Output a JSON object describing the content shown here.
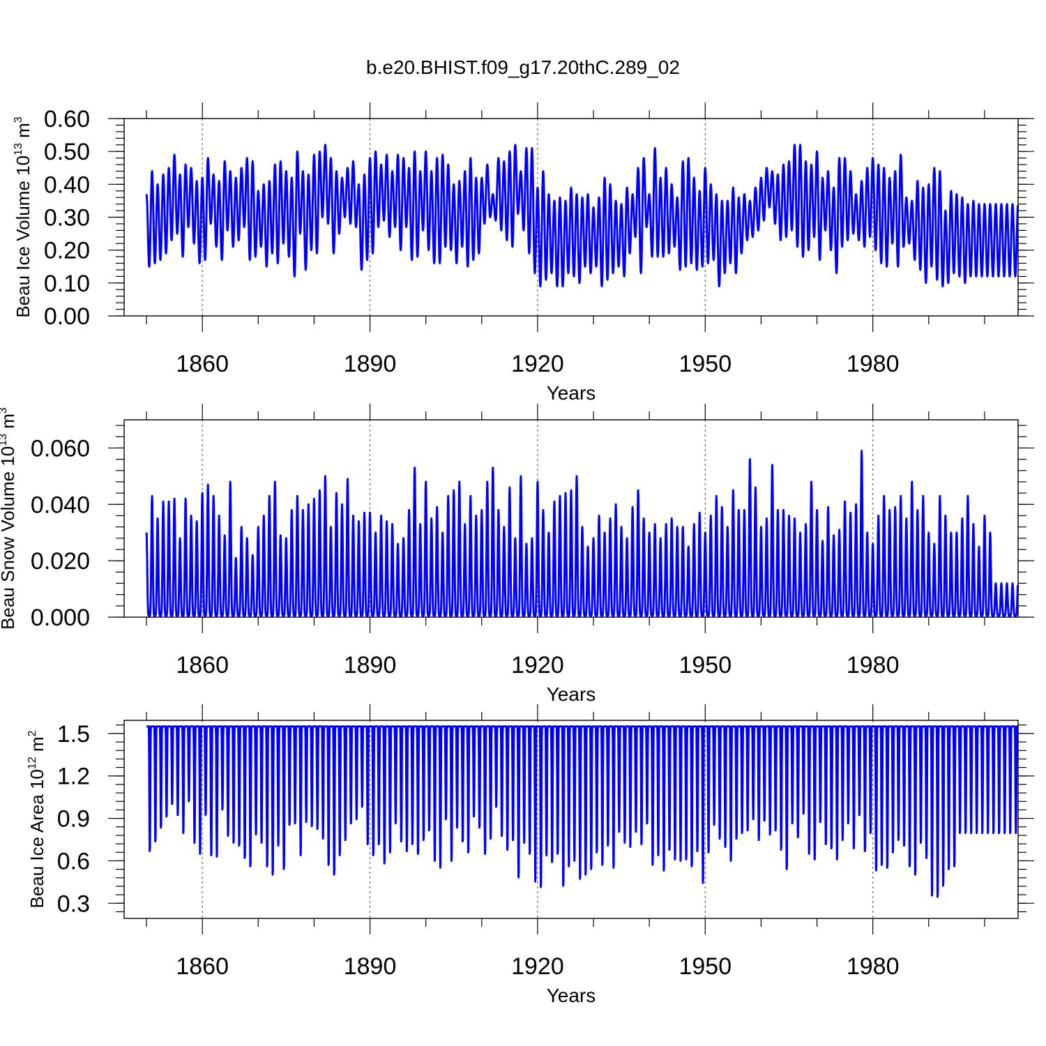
{
  "figure_title": "b.e20.BHIST.f09_g17.20thC.289_02",
  "colors": {
    "series": "#0000ff",
    "frame": "#000000",
    "grid": "#666666"
  },
  "chart_data": [
    {
      "type": "line",
      "title": "b.e20.BHIST.f09_g17.20thC.289_02",
      "xlabel": "Years",
      "ylabel": {
        "base": "Beau Ice Volume 10",
        "exp": "13",
        "unit": " m",
        "unit_exp": "3"
      },
      "xlim": [
        1846,
        2006
      ],
      "ylim": [
        0.0,
        0.6
      ],
      "x_ticks": [
        1860,
        1890,
        1920,
        1950,
        1980
      ],
      "x_tick_labels": [
        "1860",
        "1890",
        "1920",
        "1950",
        "1980"
      ],
      "y_ticks": [
        0.0,
        0.1,
        0.2,
        0.3,
        0.4,
        0.5,
        0.6
      ],
      "y_tick_labels": [
        "0.00",
        "0.10",
        "0.20",
        "0.30",
        "0.40",
        "0.50",
        "0.60"
      ],
      "grid_x": [
        1860,
        1890,
        1920,
        1950,
        1980
      ],
      "series": [
        {
          "name": "Beau Ice Volume",
          "x_start": 1850,
          "x_end": 2006,
          "annual_max": [
            0.37,
            0.44,
            0.4,
            0.43,
            0.45,
            0.49,
            0.43,
            0.46,
            0.45,
            0.41,
            0.42,
            0.48,
            0.43,
            0.41,
            0.47,
            0.44,
            0.42,
            0.45,
            0.48,
            0.47,
            0.38,
            0.4,
            0.41,
            0.46,
            0.47,
            0.44,
            0.42,
            0.5,
            0.44,
            0.43,
            0.49,
            0.5,
            0.52,
            0.48,
            0.44,
            0.42,
            0.45,
            0.47,
            0.4,
            0.43,
            0.48,
            0.5,
            0.46,
            0.49,
            0.44,
            0.49,
            0.48,
            0.45,
            0.5,
            0.44,
            0.5,
            0.44,
            0.48,
            0.49,
            0.46,
            0.4,
            0.41,
            0.44,
            0.48,
            0.42,
            0.42,
            0.46,
            0.37,
            0.48,
            0.47,
            0.5,
            0.52,
            0.44,
            0.51,
            0.51,
            0.39,
            0.44,
            0.37,
            0.35,
            0.36,
            0.35,
            0.39,
            0.37,
            0.36,
            0.37,
            0.33,
            0.36,
            0.42,
            0.4,
            0.35,
            0.34,
            0.39,
            0.37,
            0.45,
            0.48,
            0.37,
            0.51,
            0.42,
            0.45,
            0.4,
            0.36,
            0.47,
            0.48,
            0.42,
            0.38,
            0.45,
            0.4,
            0.37,
            0.35,
            0.35,
            0.39,
            0.36,
            0.37,
            0.35,
            0.39,
            0.42,
            0.45,
            0.44,
            0.43,
            0.46,
            0.47,
            0.52,
            0.52,
            0.47,
            0.46,
            0.5,
            0.42,
            0.44,
            0.39,
            0.48,
            0.48,
            0.44,
            0.37,
            0.41,
            0.45,
            0.48,
            0.46,
            0.45,
            0.42,
            0.44,
            0.49,
            0.36,
            0.35,
            0.41,
            0.39,
            0.4,
            0.45,
            0.44,
            0.32,
            0.38,
            0.37,
            0.36,
            0.34,
            0.35,
            0.34
          ],
          "annual_min": [
            0.15,
            0.16,
            0.17,
            0.19,
            0.23,
            0.25,
            0.18,
            0.27,
            0.22,
            0.16,
            0.17,
            0.28,
            0.21,
            0.17,
            0.26,
            0.21,
            0.23,
            0.27,
            0.17,
            0.18,
            0.21,
            0.15,
            0.19,
            0.16,
            0.22,
            0.18,
            0.12,
            0.25,
            0.14,
            0.2,
            0.19,
            0.3,
            0.28,
            0.19,
            0.25,
            0.3,
            0.28,
            0.27,
            0.14,
            0.17,
            0.19,
            0.27,
            0.29,
            0.24,
            0.27,
            0.2,
            0.27,
            0.17,
            0.18,
            0.26,
            0.2,
            0.16,
            0.16,
            0.21,
            0.2,
            0.16,
            0.21,
            0.15,
            0.17,
            0.19,
            0.28,
            0.3,
            0.29,
            0.26,
            0.23,
            0.21,
            0.31,
            0.26,
            0.19,
            0.13,
            0.09,
            0.11,
            0.13,
            0.09,
            0.09,
            0.13,
            0.12,
            0.1,
            0.15,
            0.13,
            0.15,
            0.09,
            0.11,
            0.13,
            0.15,
            0.12,
            0.19,
            0.24,
            0.13,
            0.27,
            0.18,
            0.18,
            0.18,
            0.19,
            0.21,
            0.14,
            0.15,
            0.16,
            0.14,
            0.15,
            0.16,
            0.17,
            0.09,
            0.13,
            0.16,
            0.13,
            0.19,
            0.23,
            0.24,
            0.26,
            0.29,
            0.33,
            0.28,
            0.23,
            0.24,
            0.26,
            0.21,
            0.18,
            0.2,
            0.24,
            0.17,
            0.26,
            0.2,
            0.13,
            0.21,
            0.23,
            0.25,
            0.23,
            0.21,
            0.24,
            0.2,
            0.16,
            0.15,
            0.22,
            0.15,
            0.21,
            0.22,
            0.17,
            0.14,
            0.1,
            0.15,
            0.11,
            0.09,
            0.1,
            0.13,
            0.12,
            0.1,
            0.12
          ]
        }
      ]
    },
    {
      "type": "line",
      "xlabel": "Years",
      "ylabel": {
        "base": "Beau Snow Volume 10",
        "exp": "13",
        "unit": " m",
        "unit_exp": "3"
      },
      "xlim": [
        1846,
        2006
      ],
      "ylim": [
        0.0,
        0.07
      ],
      "x_ticks": [
        1860,
        1890,
        1920,
        1950,
        1980
      ],
      "x_tick_labels": [
        "1860",
        "1890",
        "1920",
        "1950",
        "1980"
      ],
      "y_ticks": [
        0.0,
        0.02,
        0.04,
        0.06
      ],
      "y_tick_labels": [
        "0.000",
        "0.020",
        "0.040",
        "0.060"
      ],
      "grid_x": [
        1860,
        1890,
        1920,
        1950,
        1980
      ],
      "series": [
        {
          "name": "Beau Snow Volume",
          "x_start": 1850,
          "x_end": 2006,
          "annual_max": [
            0.03,
            0.043,
            0.035,
            0.041,
            0.041,
            0.042,
            0.028,
            0.042,
            0.036,
            0.034,
            0.044,
            0.047,
            0.043,
            0.036,
            0.029,
            0.048,
            0.021,
            0.032,
            0.028,
            0.022,
            0.032,
            0.036,
            0.043,
            0.048,
            0.029,
            0.028,
            0.038,
            0.043,
            0.038,
            0.04,
            0.042,
            0.045,
            0.05,
            0.032,
            0.044,
            0.04,
            0.049,
            0.036,
            0.034,
            0.037,
            0.037,
            0.03,
            0.036,
            0.034,
            0.033,
            0.026,
            0.028,
            0.038,
            0.053,
            0.033,
            0.048,
            0.035,
            0.039,
            0.03,
            0.043,
            0.045,
            0.048,
            0.033,
            0.043,
            0.036,
            0.038,
            0.048,
            0.053,
            0.038,
            0.032,
            0.046,
            0.028,
            0.05,
            0.026,
            0.028,
            0.048,
            0.038,
            0.03,
            0.041,
            0.043,
            0.044,
            0.045,
            0.05,
            0.032,
            0.025,
            0.028,
            0.036,
            0.03,
            0.035,
            0.04,
            0.032,
            0.028,
            0.039,
            0.045,
            0.035,
            0.03,
            0.033,
            0.028,
            0.033,
            0.035,
            0.032,
            0.032,
            0.025,
            0.033,
            0.037,
            0.03,
            0.036,
            0.043,
            0.039,
            0.032,
            0.045,
            0.038,
            0.038,
            0.056,
            0.046,
            0.032,
            0.035,
            0.054,
            0.038,
            0.038,
            0.036,
            0.035,
            0.03,
            0.033,
            0.048,
            0.038,
            0.027,
            0.039,
            0.029,
            0.031,
            0.041,
            0.037,
            0.04,
            0.059,
            0.03,
            0.026,
            0.036,
            0.043,
            0.038,
            0.039,
            0.043,
            0.035,
            0.048,
            0.038,
            0.043,
            0.03,
            0.026,
            0.043,
            0.036,
            0.03,
            0.03,
            0.035,
            0.043,
            0.033,
            0.025,
            0.036,
            0.03,
            0.012
          ],
          "annual_min": [
            0.0005
          ]
        }
      ]
    },
    {
      "type": "line",
      "xlabel": "Years",
      "ylabel": {
        "base": "Beau Ice Area 10",
        "exp": "12",
        "unit": " m",
        "unit_exp": "2"
      },
      "xlim": [
        1846,
        2006
      ],
      "ylim": [
        0.193,
        1.593
      ],
      "x_ticks": [
        1860,
        1890,
        1920,
        1950,
        1980
      ],
      "x_tick_labels": [
        "1860",
        "1890",
        "1920",
        "1950",
        "1980"
      ],
      "y_ticks": [
        0.3,
        0.6,
        0.9,
        1.2,
        1.5
      ],
      "y_tick_labels": [
        "0.3",
        "0.6",
        "0.9",
        "1.2",
        "1.5"
      ],
      "grid_x": [
        1860,
        1890,
        1920,
        1950,
        1980
      ],
      "series": [
        {
          "name": "Beau Ice Area",
          "x_start": 1850,
          "x_end": 2006,
          "annual_max": [
            1.55
          ],
          "annual_min": [
            0.65,
            0.72,
            0.82,
            0.9,
            0.99,
            0.91,
            0.78,
            1.01,
            0.71,
            0.63,
            0.91,
            0.62,
            0.61,
            0.95,
            0.76,
            0.71,
            0.69,
            0.6,
            0.54,
            0.77,
            0.71,
            0.54,
            0.48,
            0.69,
            0.52,
            0.84,
            0.85,
            0.62,
            0.86,
            0.83,
            0.81,
            0.74,
            0.55,
            0.48,
            0.62,
            0.73,
            0.85,
            0.88,
            0.97,
            0.7,
            0.62,
            0.7,
            0.56,
            0.64,
            0.85,
            0.72,
            0.65,
            0.7,
            0.63,
            0.73,
            0.8,
            0.58,
            0.53,
            0.88,
            0.58,
            0.82,
            0.72,
            0.64,
            0.9,
            0.82,
            0.63,
            0.74,
            0.97,
            0.76,
            0.66,
            0.73,
            0.46,
            0.71,
            0.63,
            0.43,
            0.39,
            0.62,
            0.57,
            0.63,
            0.4,
            0.54,
            0.58,
            0.45,
            0.48,
            0.52,
            0.64,
            0.55,
            0.69,
            0.53,
            0.79,
            0.71,
            0.68,
            0.79,
            0.7,
            0.85,
            0.55,
            0.62,
            0.51,
            0.66,
            0.59,
            0.58,
            0.59,
            0.54,
            0.65,
            0.42,
            0.64,
            0.84,
            0.74,
            0.68,
            0.58,
            0.74,
            0.78,
            0.8,
            0.88,
            0.73,
            0.87,
            0.77,
            0.8,
            0.66,
            0.52,
            0.85,
            0.75,
            0.92,
            0.63,
            0.59,
            0.86,
            0.7,
            0.67,
            0.59,
            0.73,
            0.85,
            0.67,
            0.91,
            0.65,
            0.78,
            0.51,
            0.55,
            0.53,
            0.64,
            0.73,
            0.69,
            0.54,
            0.48,
            0.71,
            0.6,
            0.33,
            0.32,
            0.4,
            0.52,
            0.54,
            0.78
          ]
        }
      ]
    }
  ]
}
